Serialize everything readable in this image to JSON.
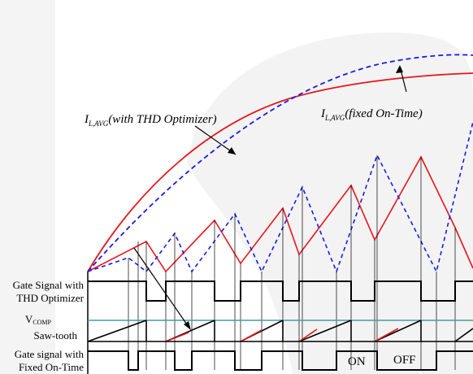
{
  "colors": {
    "background": "#ffffff",
    "watermark": "#f2f2f2",
    "thd_series": "#e8141c",
    "fixed_series": "#1a1ae6",
    "gate": "#000000",
    "vcomp": "#4a9a9a",
    "sawtooth": "#000000",
    "guide": "#000000"
  },
  "labels": {
    "thd_avg_main": "I",
    "thd_avg_sub": "L,AVG",
    "thd_avg_tail": "(with THD Optimizer)",
    "fixed_avg_main": "I",
    "fixed_avg_sub": "L,AVG",
    "fixed_avg_tail": "(fixed On-Time)",
    "row_gate_thd_1": "Gate Signal with",
    "row_gate_thd_2": "THD Optimizer",
    "row_vcomp_main": "V",
    "row_vcomp_sub": "COMP",
    "row_sawtooth": "Saw-tooth",
    "row_gate_fixed_1": "Gate signal with",
    "row_gate_fixed_2": "Fixed On-Time",
    "on": "ON",
    "off": "OFF"
  },
  "diagram": {
    "thd_peaks": [
      0.25,
      0.32,
      0.4,
      0.48,
      0.56,
      0.62,
      0.66
    ],
    "fixed_peaks": [
      0.13,
      0.27,
      0.39,
      0.49,
      0.56,
      0.62,
      0.66
    ]
  }
}
